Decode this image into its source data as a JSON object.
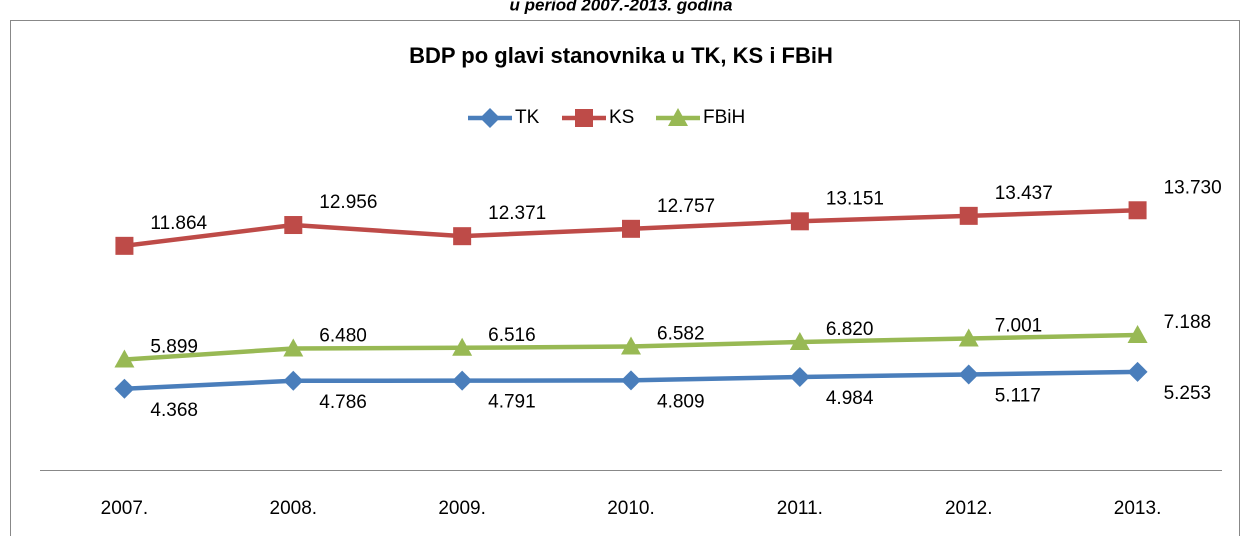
{
  "chart_data": {
    "type": "line",
    "caption": "u period 2007.-2013. godina",
    "title": "BDP po glavi stanovnika u TK, KS i FBiH",
    "categories": [
      "2007.",
      "2008.",
      "2009.",
      "2010.",
      "2011.",
      "2012.",
      "2013."
    ],
    "series": [
      {
        "name": "TK",
        "color": "#4a7ebb",
        "marker": "diamond",
        "values": [
          4.368,
          4.786,
          4.791,
          4.809,
          4.984,
          5.117,
          5.253
        ],
        "value_labels": [
          "4.368",
          "4.786",
          "4.791",
          "4.809",
          "4.984",
          "5.117",
          "5.253"
        ]
      },
      {
        "name": "KS",
        "color": "#be4b48",
        "marker": "square",
        "values": [
          11.864,
          12.956,
          12.371,
          12.757,
          13.151,
          13.437,
          13.73
        ],
        "value_labels": [
          "11.864",
          "12.956",
          "12.371",
          "12.757",
          "13.151",
          "13.437",
          "13.730"
        ]
      },
      {
        "name": "FBiH",
        "color": "#98b954",
        "marker": "triangle",
        "values": [
          5.899,
          6.48,
          6.516,
          6.582,
          6.82,
          7.001,
          7.188
        ],
        "value_labels": [
          "5.899",
          "6.480",
          "6.516",
          "6.582",
          "6.820",
          "7.001",
          "7.188"
        ]
      }
    ],
    "ylim": [
      0,
      16
    ],
    "legend": "top"
  }
}
